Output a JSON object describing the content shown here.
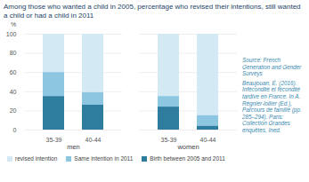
{
  "chart_data": {
    "type": "bar",
    "title": "Among those who wanted a child in 2005, percentage who revised their intentions, still wanted a child or had a child in 2011",
    "categories": [
      "35-39",
      "40-44",
      "35-39",
      "40-44"
    ],
    "groups": [
      "men",
      "men",
      "women",
      "women"
    ],
    "series": [
      {
        "name": "revised intention",
        "color": "#d3eaf5",
        "values": [
          40,
          61,
          65,
          85
        ]
      },
      {
        "name": "Same intention in 2011",
        "color": "#8cc6e0",
        "values": [
          25,
          13,
          11,
          11
        ]
      },
      {
        "name": "Birth between 2005 and 2011",
        "color": "#2e7d9e",
        "values": [
          35,
          26,
          24,
          4
        ]
      }
    ],
    "y_label": "%",
    "ylim": [
      0,
      100
    ],
    "yticks": [
      0,
      20,
      40,
      60,
      80,
      100
    ],
    "grid": true,
    "stacked": true,
    "legend": "bottom",
    "annotations": [
      "Source: French Generation and Gender Surveys",
      "Beaujouan, É. (2016). Infécondité et fécondité tardive en France. In A. Régnier-loilier (Ed.), Parcours de famille (pp. 285–294). Paris: Collection Grandes enquêtes, Ined."
    ]
  }
}
